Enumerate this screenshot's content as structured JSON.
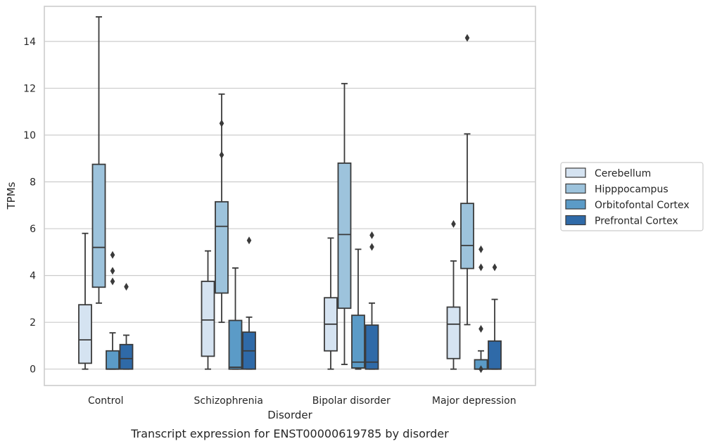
{
  "chart_data": {
    "type": "box",
    "caption": "Transcript expression for ENST00000619785 by disorder",
    "xlabel": "Disorder",
    "ylabel": "TPMs",
    "ylim": [
      -0.7,
      15.5
    ],
    "yticks": [
      0,
      2,
      4,
      6,
      8,
      10,
      12,
      14
    ],
    "grid": true,
    "legend_position": "right",
    "categories": [
      "Control",
      "Schizophrenia",
      "Bipolar disorder",
      "Major depression"
    ],
    "series": [
      {
        "name": "Cerebellum",
        "color": "#d5e3f1",
        "boxes": [
          {
            "whislo": 0.0,
            "q1": 0.25,
            "med": 1.25,
            "q3": 2.75,
            "whishi": 5.8,
            "fliers": []
          },
          {
            "whislo": 0.0,
            "q1": 0.55,
            "med": 2.1,
            "q3": 3.75,
            "whishi": 5.05,
            "fliers": []
          },
          {
            "whislo": 0.0,
            "q1": 0.78,
            "med": 1.92,
            "q3": 3.05,
            "whishi": 5.6,
            "fliers": []
          },
          {
            "whislo": 0.0,
            "q1": 0.45,
            "med": 1.92,
            "q3": 2.65,
            "whishi": 4.62,
            "fliers": [
              6.2
            ]
          }
        ]
      },
      {
        "name": "Hipppocampus",
        "color": "#9dc3dc",
        "boxes": [
          {
            "whislo": 2.82,
            "q1": 3.5,
            "med": 5.2,
            "q3": 8.75,
            "whishi": 15.05,
            "fliers": []
          },
          {
            "whislo": 2.0,
            "q1": 3.25,
            "med": 6.1,
            "q3": 7.15,
            "whishi": 11.75,
            "fliers": [
              9.15,
              10.5
            ]
          },
          {
            "whislo": 0.2,
            "q1": 2.6,
            "med": 5.75,
            "q3": 8.8,
            "whishi": 12.2,
            "fliers": []
          },
          {
            "whislo": 1.9,
            "q1": 4.3,
            "med": 5.28,
            "q3": 7.08,
            "whishi": 10.05,
            "fliers": [
              14.15
            ]
          }
        ]
      },
      {
        "name": "Orbitofontal Cortex",
        "color": "#5b9bc7",
        "boxes": [
          {
            "whislo": 0.0,
            "q1": 0.0,
            "med": 0.0,
            "q3": 0.78,
            "whishi": 1.55,
            "fliers": [
              3.75,
              4.2,
              4.88
            ]
          },
          {
            "whislo": 0.0,
            "q1": 0.0,
            "med": 0.08,
            "q3": 2.08,
            "whishi": 4.32,
            "fliers": []
          },
          {
            "whislo": 0.0,
            "q1": 0.05,
            "med": 0.3,
            "q3": 2.3,
            "whishi": 5.12,
            "fliers": []
          },
          {
            "whislo": 0.0,
            "q1": 0.0,
            "med": 0.0,
            "q3": 0.4,
            "whishi": 0.78,
            "fliers": [
              0.0,
              1.72,
              4.35,
              5.12
            ]
          }
        ]
      },
      {
        "name": "Prefrontal Cortex",
        "color": "#2f6aa8",
        "boxes": [
          {
            "whislo": 0.0,
            "q1": 0.0,
            "med": 0.45,
            "q3": 1.05,
            "whishi": 1.45,
            "fliers": [
              3.52
            ]
          },
          {
            "whislo": 0.0,
            "q1": 0.0,
            "med": 0.78,
            "q3": 1.58,
            "whishi": 2.22,
            "fliers": [
              5.5
            ]
          },
          {
            "whislo": 0.0,
            "q1": 0.0,
            "med": 0.3,
            "q3": 1.88,
            "whishi": 2.82,
            "fliers": [
              5.22,
              5.72
            ]
          },
          {
            "whislo": 0.0,
            "q1": 0.0,
            "med": 0.0,
            "q3": 1.2,
            "whishi": 2.98,
            "fliers": [
              4.35
            ]
          }
        ]
      }
    ]
  }
}
